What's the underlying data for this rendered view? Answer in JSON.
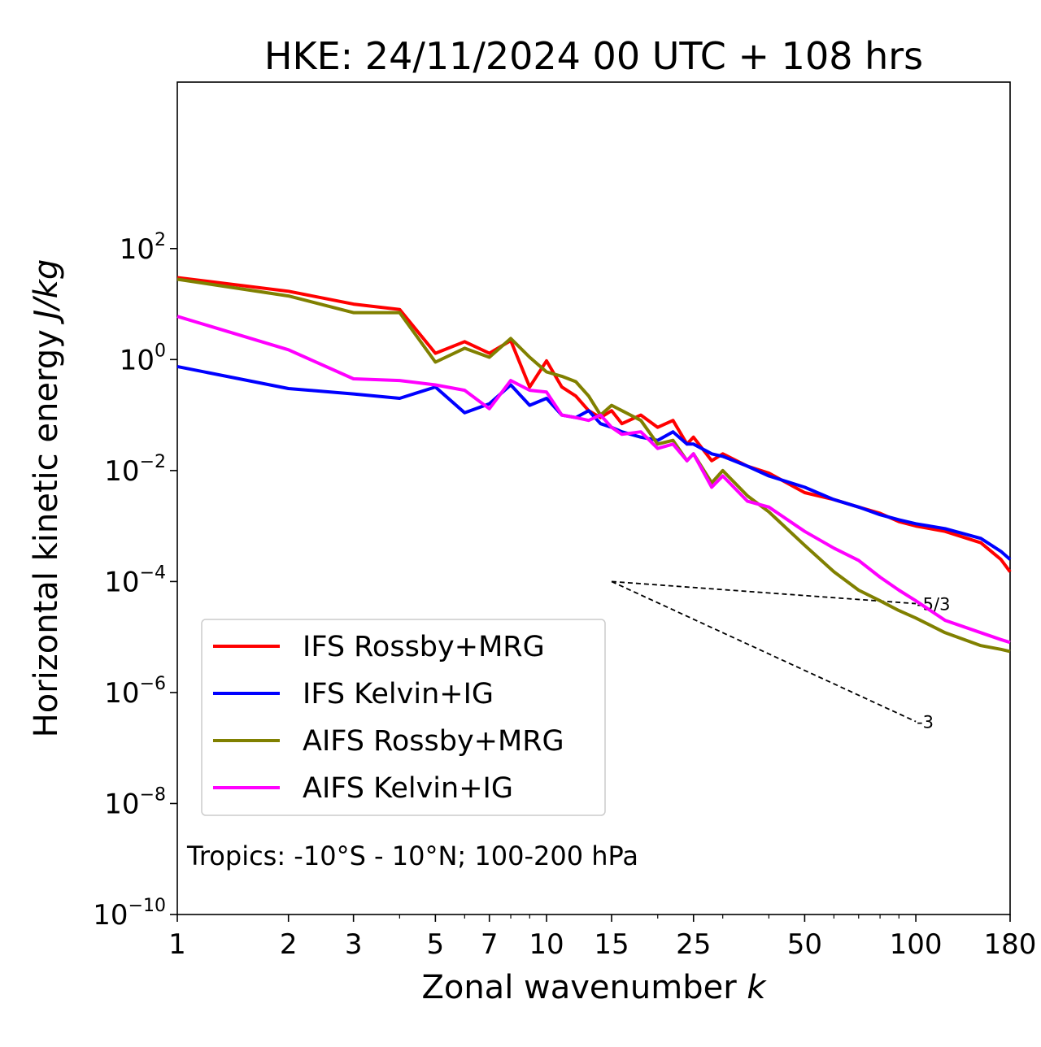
{
  "chart_data": {
    "type": "line",
    "title": "HKE: 24/11/2024 00 UTC + 108 hrs",
    "xlabel": "Zonal wavenumber ",
    "xlabel_var": "k",
    "ylabel": "Horizontal kinetic energy ",
    "ylabel_unit": "J/kg",
    "xscale": "log",
    "yscale": "log",
    "xlim": [
      1,
      180
    ],
    "ylim": [
      1e-10,
      100000.0
    ],
    "x_ticks": [
      1,
      2,
      3,
      5,
      7,
      10,
      15,
      25,
      50,
      100,
      180
    ],
    "x_tick_labels": [
      "1",
      "2",
      "3",
      "5",
      "7",
      "10",
      "15",
      "25",
      "50",
      "100",
      "180"
    ],
    "y_ticks": [
      {
        "value": 100.0,
        "base": "10",
        "exp": "2"
      },
      {
        "value": 1.0,
        "base": "10",
        "exp": "0"
      },
      {
        "value": 0.01,
        "base": "10",
        "exp": "−2"
      },
      {
        "value": 0.0001,
        "base": "10",
        "exp": "−4"
      },
      {
        "value": 1e-06,
        "base": "10",
        "exp": "−6"
      },
      {
        "value": 1e-08,
        "base": "10",
        "exp": "−8"
      },
      {
        "value": 1e-10,
        "base": "10",
        "exp": "−10"
      }
    ],
    "annotation": "Tropics: -10°S - 10°N; 100-200 hPa",
    "legend_position": "lower-left",
    "reference_lines": [
      {
        "label": "-5/3",
        "x": [
          15,
          100
        ],
        "y": [
          0.0001,
          4e-05
        ]
      },
      {
        "label": "-3",
        "x": [
          15,
          100
        ],
        "y": [
          0.0001,
          3e-07
        ]
      }
    ],
    "series": [
      {
        "name": "IFS Rossby+MRG",
        "color": "#ff0000",
        "x": [
          1,
          2,
          3,
          4,
          5,
          6,
          7,
          8,
          9,
          10,
          11,
          12,
          13,
          14,
          15,
          16,
          18,
          20,
          22,
          24,
          25,
          28,
          30,
          35,
          40,
          50,
          60,
          70,
          80,
          90,
          100,
          120,
          150,
          170,
          180
        ],
        "y": [
          30,
          17,
          10,
          8,
          1.3,
          2.1,
          1.3,
          2.2,
          0.32,
          0.95,
          0.32,
          0.22,
          0.12,
          0.09,
          0.12,
          0.07,
          0.1,
          0.06,
          0.08,
          0.03,
          0.04,
          0.015,
          0.02,
          0.012,
          0.009,
          0.004,
          0.003,
          0.0022,
          0.0017,
          0.0012,
          0.001,
          0.0008,
          0.0005,
          0.00025,
          0.00015
        ]
      },
      {
        "name": "IFS Kelvin+IG",
        "color": "#0000ff",
        "x": [
          1,
          2,
          3,
          4,
          5,
          6,
          7,
          8,
          9,
          10,
          11,
          12,
          13,
          14,
          15,
          16,
          18,
          20,
          22,
          24,
          25,
          28,
          30,
          35,
          40,
          50,
          60,
          70,
          80,
          90,
          100,
          120,
          150,
          170,
          180
        ],
        "y": [
          0.75,
          0.3,
          0.24,
          0.2,
          0.32,
          0.11,
          0.16,
          0.35,
          0.15,
          0.2,
          0.1,
          0.09,
          0.12,
          0.07,
          0.06,
          0.05,
          0.04,
          0.035,
          0.05,
          0.03,
          0.03,
          0.02,
          0.018,
          0.012,
          0.008,
          0.005,
          0.003,
          0.0022,
          0.0016,
          0.0013,
          0.0011,
          0.0009,
          0.0006,
          0.00035,
          0.00025
        ]
      },
      {
        "name": "AIFS Rossby+MRG",
        "color": "#808000",
        "x": [
          1,
          2,
          3,
          4,
          5,
          6,
          7,
          8,
          9,
          10,
          11,
          12,
          13,
          14,
          15,
          16,
          18,
          20,
          22,
          24,
          25,
          28,
          30,
          35,
          40,
          50,
          60,
          70,
          80,
          90,
          100,
          120,
          150,
          170,
          180
        ],
        "y": [
          28,
          14,
          7,
          7,
          0.9,
          1.6,
          1.1,
          2.4,
          1.1,
          0.6,
          0.5,
          0.4,
          0.22,
          0.1,
          0.15,
          0.12,
          0.08,
          0.03,
          0.035,
          0.015,
          0.02,
          0.006,
          0.01,
          0.0035,
          0.0018,
          0.00045,
          0.00015,
          7e-05,
          4.5e-05,
          3e-05,
          2.2e-05,
          1.2e-05,
          7e-06,
          6e-06,
          5.5e-06
        ]
      },
      {
        "name": "AIFS Kelvin+IG",
        "color": "#ff00ff",
        "x": [
          1,
          2,
          3,
          4,
          5,
          6,
          7,
          8,
          9,
          10,
          11,
          12,
          13,
          14,
          15,
          16,
          18,
          20,
          22,
          24,
          25,
          28,
          30,
          35,
          40,
          50,
          60,
          70,
          80,
          90,
          100,
          120,
          150,
          170,
          180
        ],
        "y": [
          6,
          1.5,
          0.45,
          0.42,
          0.35,
          0.28,
          0.13,
          0.42,
          0.28,
          0.26,
          0.1,
          0.09,
          0.08,
          0.1,
          0.06,
          0.045,
          0.05,
          0.025,
          0.03,
          0.015,
          0.02,
          0.005,
          0.008,
          0.0028,
          0.0022,
          0.0008,
          0.0004,
          0.00024,
          0.00012,
          7e-05,
          4.5e-05,
          2e-05,
          1.2e-05,
          9e-06,
          8e-06
        ]
      }
    ]
  }
}
